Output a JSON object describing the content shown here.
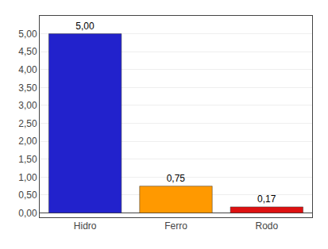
{
  "chart_data": {
    "type": "bar",
    "categories": [
      "Hidro",
      "Ferro",
      "Rodo"
    ],
    "values": [
      5.0,
      0.75,
      0.17
    ],
    "value_labels": [
      "5,00",
      "0,75",
      "0,17"
    ],
    "data_labels": true,
    "colors": [
      "#2222cc",
      "#ff9900",
      "#dd1111"
    ],
    "ylim": [
      -0.12,
      5.5
    ],
    "yticks": [
      {
        "value": 0.0,
        "label": "0,00"
      },
      {
        "value": 0.5,
        "label": "0,50"
      },
      {
        "value": 1.0,
        "label": "1,00"
      },
      {
        "value": 1.5,
        "label": "1,50"
      },
      {
        "value": 2.0,
        "label": "2,00"
      },
      {
        "value": 2.5,
        "label": "2,50"
      },
      {
        "value": 3.0,
        "label": "3,00"
      },
      {
        "value": 3.5,
        "label": "3,50"
      },
      {
        "value": 4.0,
        "label": "4,00"
      },
      {
        "value": 4.5,
        "label": "4,50"
      },
      {
        "value": 5.0,
        "label": "5,00"
      }
    ],
    "grid": true
  }
}
